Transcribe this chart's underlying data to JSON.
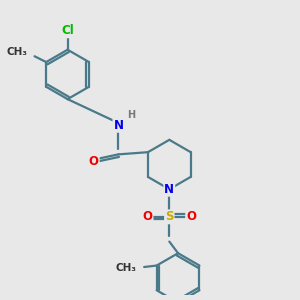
{
  "bg_color": "#e8e8e8",
  "bond_color": "#4a7a8a",
  "bond_width": 1.6,
  "atom_colors": {
    "Cl": "#00bb00",
    "N": "#0000ee",
    "O": "#ee0000",
    "S": "#ccaa00",
    "H": "#777777",
    "C": "#333333"
  },
  "font_size": 8.5
}
